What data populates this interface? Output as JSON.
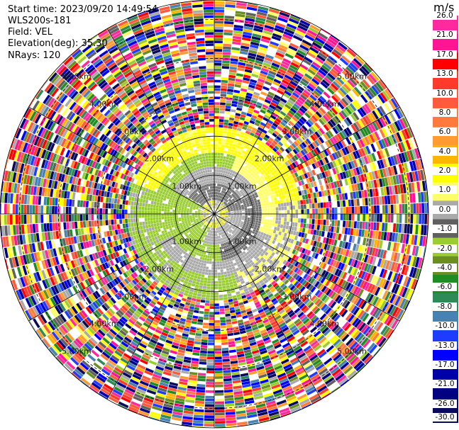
{
  "header": {
    "start_time": "Start time: 2023/09/20 14:49:54",
    "instrument": "WLS200s-181",
    "field": "Field: VEL",
    "elevation": "Elevation(deg): 35.30",
    "nrays": "NRays: 120"
  },
  "colorbar": {
    "unit": "m/s",
    "ticks": [
      "26.0",
      "21.0",
      "17.0",
      "13.0",
      "10.0",
      "8.0",
      "6.0",
      "4.0",
      "2.0",
      "1.0",
      "0.0",
      "-1.0",
      "-2.0",
      "-4.0",
      "-6.0",
      "-8.0",
      "-10.0",
      "-13.0",
      "-17.0",
      "-21.0",
      "-26.0",
      "-30.0"
    ],
    "colors": [
      "#ff2a9d",
      "#ff1493",
      "#ff0000",
      "#ff3a2a",
      "#ff5a3c",
      "#ff7a3c",
      "#ff9b30",
      "#ffb400",
      "#ffff00",
      "#ffff66",
      "#aaaaaa",
      "#606060",
      "#9acd32",
      "#6b8e23",
      "#228b22",
      "#2e8b57",
      "#4682b4",
      "#1e3cff",
      "#0000ff",
      "#0000a8",
      "#000080",
      "#0a0a5a"
    ]
  },
  "chart_data": {
    "type": "ppi",
    "field": "VEL",
    "units": "m/s",
    "nrays": 120,
    "elevation_deg": 35.3,
    "range_rings_km": [
      1.0,
      2.0,
      3.0,
      4.0,
      5.0
    ],
    "ring_labels": [
      "1.00km",
      "2.00km",
      "3.00km",
      "4.00km",
      "5.00km"
    ],
    "clim": [
      -30.0,
      26.0
    ],
    "coherent_region_km": 2.2,
    "note_regions": [
      {
        "sector": "north",
        "velocity_ms": 2.0
      },
      {
        "sector": "south-west",
        "velocity_ms": -2.0
      },
      {
        "sector": "near-center",
        "velocity_ms": 0.0
      }
    ]
  }
}
